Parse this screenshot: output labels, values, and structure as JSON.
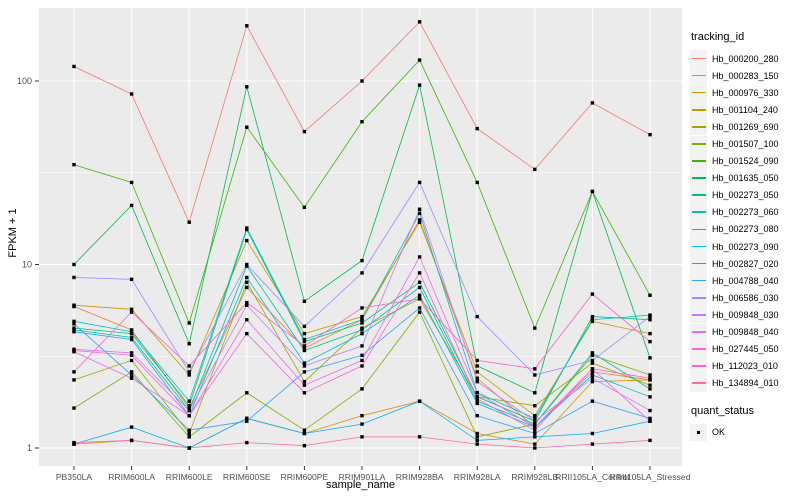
{
  "chart_data": {
    "type": "line",
    "title": "",
    "xlabel": "sample_name",
    "ylabel": "FPKM + 1",
    "y_scale": "log10",
    "y_ticks": [
      1,
      10,
      100
    ],
    "y_tick_labels": [
      "1",
      "10",
      "100"
    ],
    "y_minor_ticks": [
      3.1623,
      31.623
    ],
    "ylim": [
      0.8,
      253
    ],
    "grid": true,
    "panel_bg": "#EBEBEB",
    "grid_color": "#FFFFFF",
    "point_shape": "filled-square",
    "point_color": "#000000",
    "legend_position": "right",
    "categories": [
      "PB350LA",
      "RRIM600LA",
      "RRIM600LE",
      "RRIM600SE",
      "RRIM600PE",
      "RRIM901LA",
      "RRIM928BA",
      "RRIM928LA",
      "RRIM928LB",
      "RRII105LA_Control",
      "RRII105LA_Stressed"
    ],
    "series": [
      {
        "name": "Hb_000200_280",
        "color": "#F8766D",
        "values": [
          120,
          85,
          17,
          200,
          53,
          100,
          210,
          55,
          33,
          76,
          51
        ]
      },
      {
        "name": "Hb_000283_150",
        "color": "#EA8331",
        "values": [
          5.9,
          4.4,
          1.65,
          7.5,
          3.5,
          5.0,
          17.5,
          2.4,
          1.3,
          2.6,
          2.35
        ]
      },
      {
        "name": "Hb_000976_330",
        "color": "#D89000",
        "values": [
          1.05,
          1.1,
          1.0,
          1.45,
          1.2,
          1.5,
          1.8,
          1.2,
          1.05,
          2.3,
          2.35
        ]
      },
      {
        "name": "Hb_001104_240",
        "color": "#C09B00",
        "values": [
          6.0,
          5.7,
          2.5,
          13.5,
          4.2,
          5.2,
          17,
          2.6,
          1.5,
          4.9,
          4.2
        ]
      },
      {
        "name": "Hb_001269_690",
        "color": "#A3A500",
        "values": [
          2.35,
          3.0,
          1.2,
          8.0,
          2.3,
          4.5,
          6.5,
          1.9,
          1.7,
          2.9,
          2.2
        ]
      },
      {
        "name": "Hb_001507_100",
        "color": "#7CAE00",
        "values": [
          1.65,
          2.6,
          1.15,
          2.0,
          1.25,
          2.1,
          5.5,
          1.15,
          1.35,
          3.2,
          2.5
        ]
      },
      {
        "name": "Hb_001524_090",
        "color": "#39B600",
        "values": [
          35,
          28,
          4.8,
          56,
          20.5,
          60,
          130,
          28,
          4.5,
          25,
          6.8
        ]
      },
      {
        "name": "Hb_001635_050",
        "color": "#00BB4E",
        "values": [
          10,
          21,
          3.7,
          93,
          6.3,
          10.5,
          95,
          2.8,
          2.0,
          25,
          3.1
        ]
      },
      {
        "name": "Hb_002273_050",
        "color": "#00BF7D",
        "values": [
          4.5,
          4.2,
          1.7,
          15.5,
          3.8,
          4.8,
          8.0,
          1.9,
          1.4,
          5.2,
          5.0
        ]
      },
      {
        "name": "Hb_002273_060",
        "color": "#00C1A3",
        "values": [
          4.4,
          4.0,
          1.6,
          9.8,
          3.4,
          4.4,
          7.5,
          1.8,
          1.35,
          3.3,
          2.1
        ]
      },
      {
        "name": "Hb_002273_080",
        "color": "#00BFC4",
        "values": [
          4.9,
          4.3,
          1.8,
          15.8,
          3.9,
          5.0,
          19,
          2.0,
          1.45,
          5.0,
          5.3
        ]
      },
      {
        "name": "Hb_002273_090",
        "color": "#00BAE0",
        "values": [
          4.3,
          3.9,
          1.5,
          8.5,
          2.9,
          4.2,
          6.8,
          1.75,
          1.3,
          2.5,
          1.9
        ]
      },
      {
        "name": "Hb_002827_020",
        "color": "#00B0F6",
        "values": [
          1.05,
          1.3,
          1.0,
          1.45,
          1.2,
          1.35,
          1.8,
          1.1,
          1.15,
          1.2,
          1.4
        ]
      },
      {
        "name": "Hb_004788_040",
        "color": "#35A2FF",
        "values": [
          4.75,
          2.5,
          1.25,
          1.4,
          2.6,
          3.2,
          5.8,
          1.5,
          1.2,
          1.8,
          1.45
        ]
      },
      {
        "name": "Hb_006586_030",
        "color": "#9590FF",
        "values": [
          8.5,
          8.3,
          2.6,
          10,
          4.6,
          9.0,
          28,
          5.2,
          2.5,
          3.0,
          5.2
        ]
      },
      {
        "name": "Hb_009848_030",
        "color": "#C77CFF",
        "values": [
          3.45,
          3.3,
          1.6,
          6.0,
          2.8,
          3.6,
          20,
          2.3,
          1.4,
          2.4,
          1.6
        ]
      },
      {
        "name": "Hb_009848_040",
        "color": "#E76BF3",
        "values": [
          3.35,
          2.4,
          1.5,
          5.0,
          2.2,
          3.0,
          11,
          2.0,
          1.3,
          2.7,
          1.4
        ]
      },
      {
        "name": "Hb_027445_050",
        "color": "#FA62DB",
        "values": [
          3.4,
          3.2,
          1.5,
          4.2,
          2.0,
          2.8,
          9.0,
          1.85,
          1.25,
          2.7,
          2.4
        ]
      },
      {
        "name": "Hb_112023_010",
        "color": "#FF61C9",
        "values": [
          2.6,
          5.5,
          2.8,
          6.2,
          3.6,
          5.8,
          6.5,
          3.0,
          2.7,
          6.9,
          3.8
        ]
      },
      {
        "name": "Hb_134894_010",
        "color": "#FF67A4",
        "values": [
          1.07,
          1.1,
          1.0,
          1.07,
          1.03,
          1.15,
          1.15,
          1.05,
          1.0,
          1.05,
          1.1
        ]
      }
    ],
    "legend": {
      "tracking_title": "tracking_id",
      "quant_title": "quant_status",
      "quant_items": [
        {
          "label": "OK",
          "shape": "filled-square",
          "color": "#000000"
        }
      ]
    }
  }
}
